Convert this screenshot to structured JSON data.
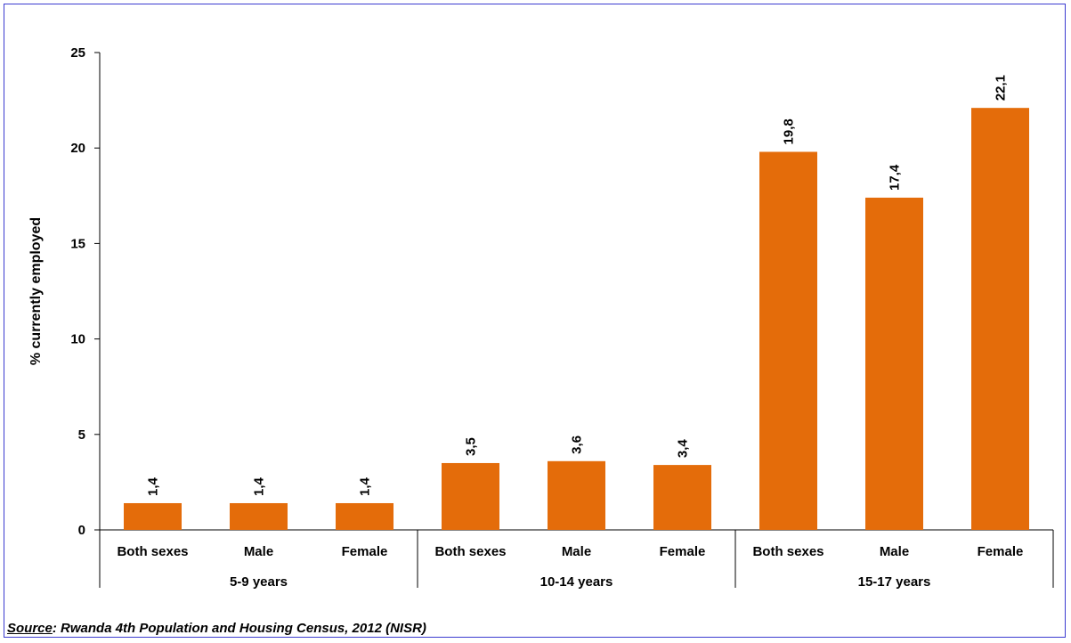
{
  "chart_data": {
    "type": "bar",
    "title": "",
    "xlabel": "",
    "ylabel": "% currently employed",
    "ylim": [
      0,
      25
    ],
    "yticks": [
      0,
      5,
      10,
      15,
      20,
      25
    ],
    "grid": false,
    "legend": "none",
    "groups": [
      {
        "label": "5-9 years",
        "categories": [
          "Both sexes",
          "Male",
          "Female"
        ],
        "values": [
          1.4,
          1.4,
          1.4
        ],
        "value_labels": [
          "1,4",
          "1,4",
          "1,4"
        ]
      },
      {
        "label": "10-14 years",
        "categories": [
          "Both sexes",
          "Male",
          "Female"
        ],
        "values": [
          3.5,
          3.6,
          3.4
        ],
        "value_labels": [
          "3,5",
          "3,6",
          "3,4"
        ]
      },
      {
        "label": "15-17 years",
        "categories": [
          "Both sexes",
          "Male",
          "Female"
        ],
        "values": [
          19.8,
          17.4,
          22.1
        ],
        "value_labels": [
          "19,8",
          "17,4",
          "22,1"
        ]
      }
    ],
    "bar_color": "#e46c0a"
  },
  "source": {
    "lead": "Source",
    "text": ": Rwanda 4th Population and Housing Census, 2012 (NISR)"
  },
  "colors": {
    "frame": "#3b3bd0",
    "bar": "#e46c0a",
    "axis": "#000000"
  }
}
